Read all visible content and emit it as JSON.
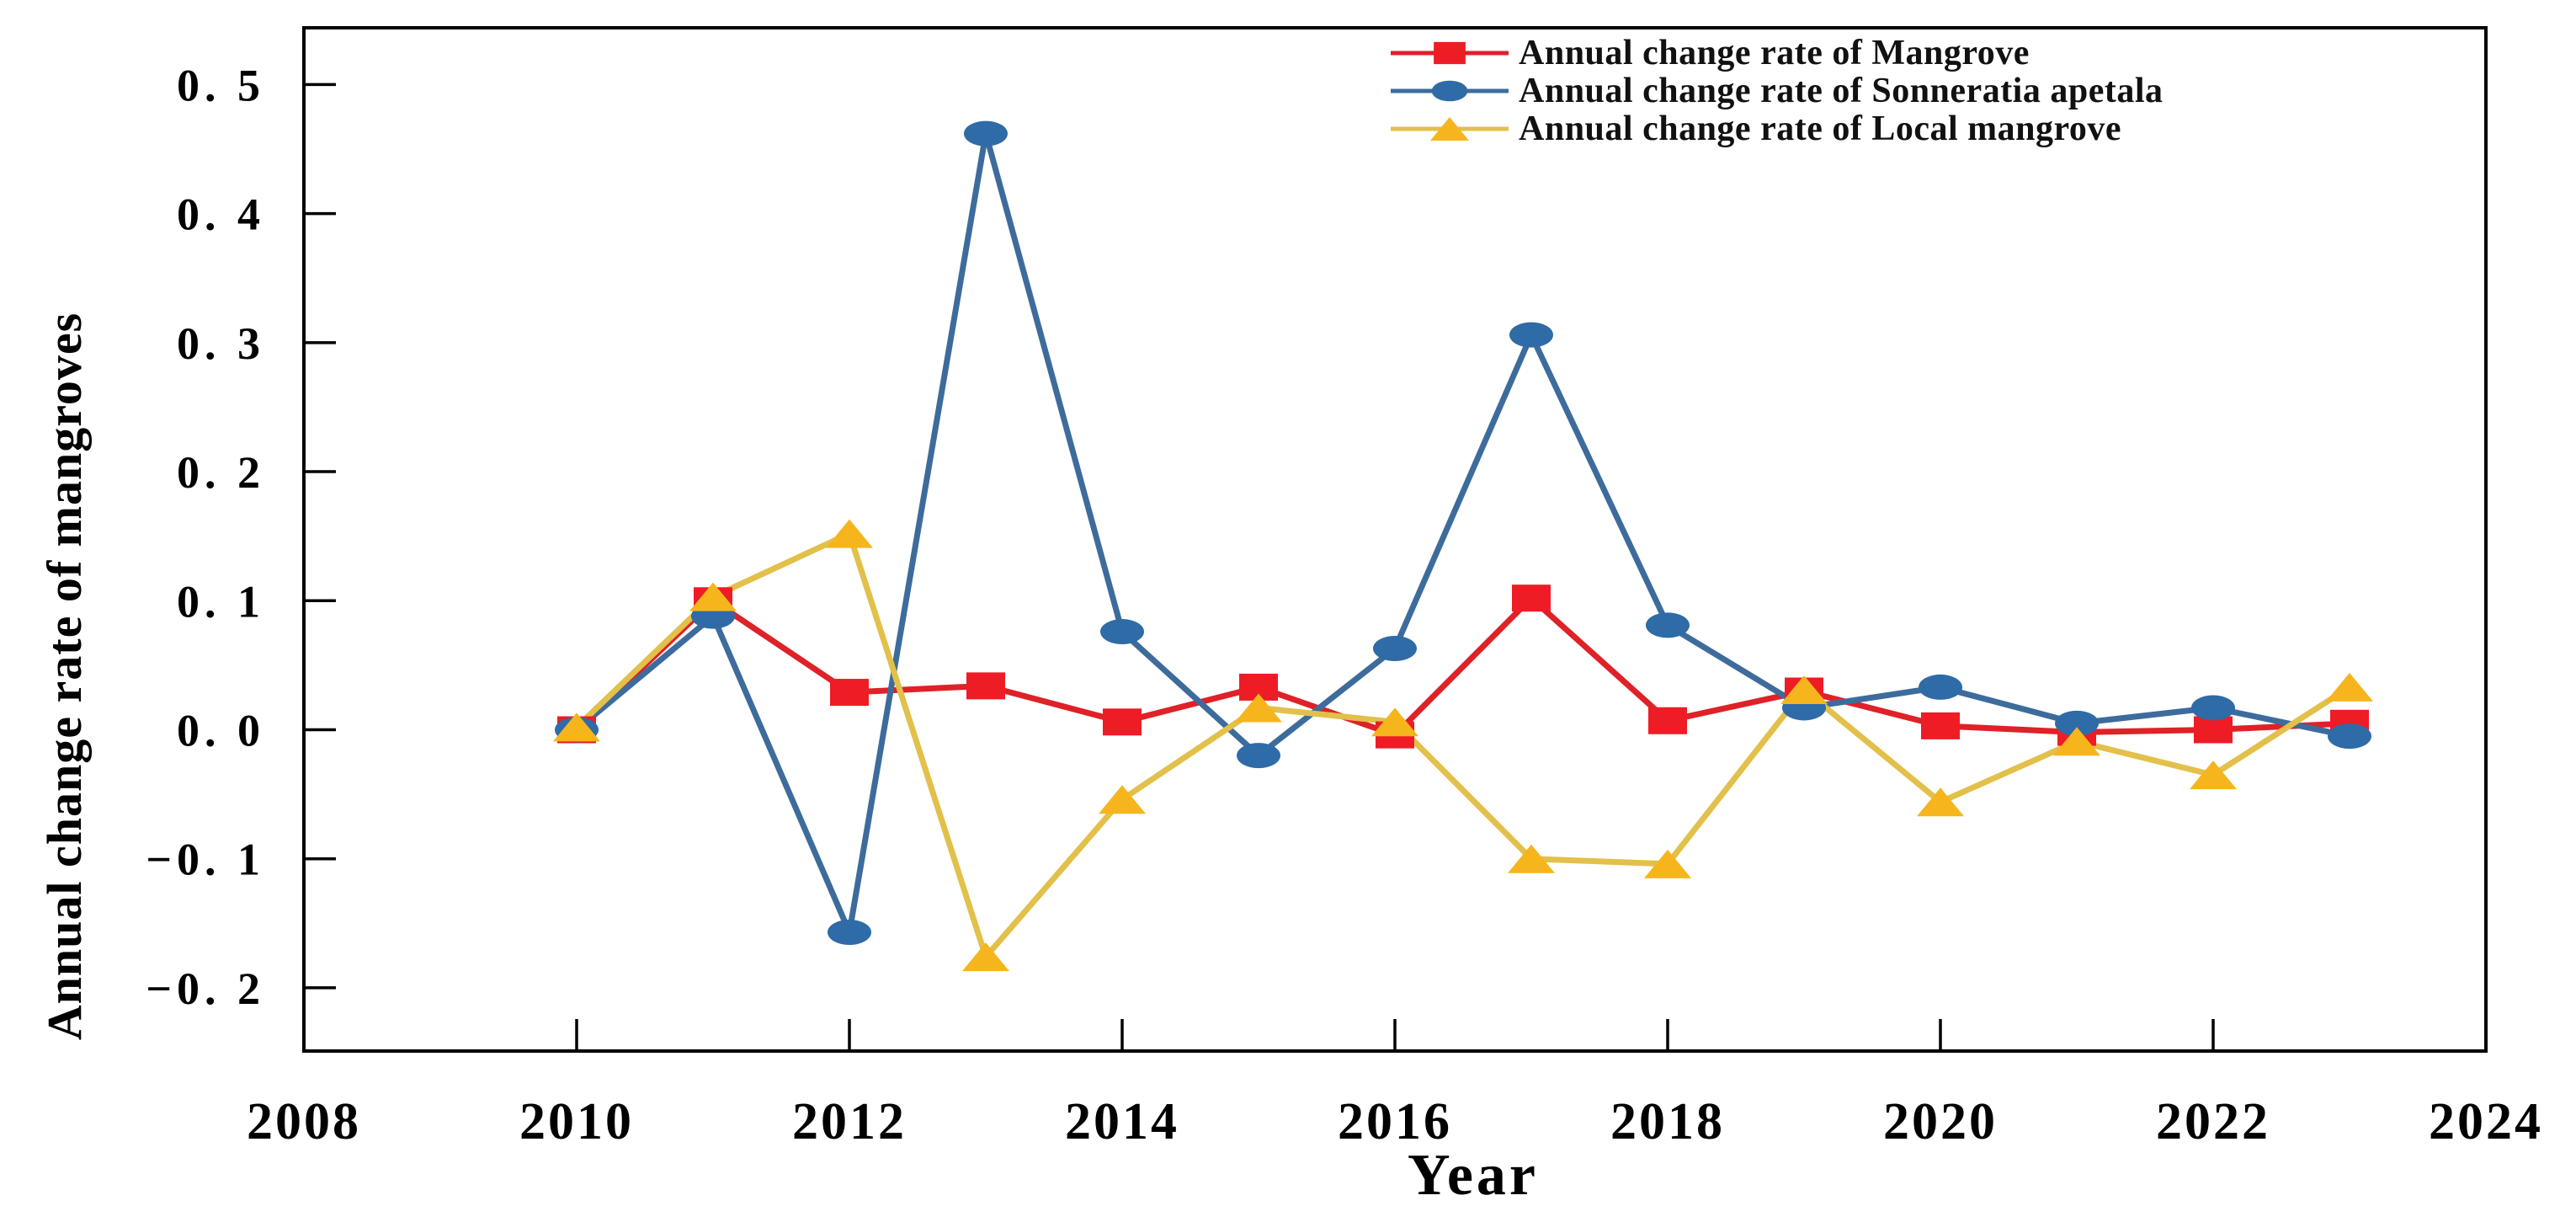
{
  "figure": {
    "background": "#ffffff",
    "axis_color": "#000000"
  },
  "chart_data": {
    "type": "line",
    "title": "",
    "xlabel": "Year",
    "ylabel": "Annual change rate of mangroves",
    "grid": false,
    "legend_position": "top-right-inside",
    "tick_direction": "in",
    "xlim": [
      2008,
      2024
    ],
    "ylim": [
      -0.249,
      0.544
    ],
    "xticks": [
      2008,
      2010,
      2012,
      2014,
      2016,
      2018,
      2020,
      2022,
      2024
    ],
    "yticks": [
      0.5,
      0.4,
      0.3,
      0.2,
      0.1,
      0.0,
      -0.1,
      -0.2
    ],
    "ytick_labels": [
      "0. 5",
      "0. 4",
      "0. 3",
      "0. 2",
      "0. 1",
      "0. 0",
      "−0. 1",
      "−0. 2"
    ],
    "x": [
      2010,
      2011,
      2012,
      2013,
      2014,
      2015,
      2016,
      2017,
      2018,
      2019,
      2020,
      2021,
      2022,
      2023
    ],
    "series": [
      {
        "key": "mangrove",
        "name": "Annual change rate of Mangrove",
        "marker": "square",
        "line_color": "#df2128",
        "marker_color": "#ee1c25",
        "values": [
          0.0,
          0.1,
          0.029,
          0.034,
          0.006,
          0.033,
          -0.004,
          0.102,
          0.007,
          0.03,
          0.003,
          -0.002,
          0.0,
          0.005
        ]
      },
      {
        "key": "sonneratia-apetala",
        "name": "Annual change rate of Sonneratia apetala",
        "marker": "circle",
        "line_color": "#3d6c9c",
        "marker_color": "#2f6ba6",
        "values": [
          0.0,
          0.088,
          -0.157,
          0.462,
          0.076,
          -0.02,
          0.063,
          0.306,
          0.081,
          0.017,
          0.033,
          0.005,
          0.017,
          -0.005
        ]
      },
      {
        "key": "local-mangrove",
        "name": "Annual change rate of Local mangrove",
        "marker": "triangle",
        "line_color": "#e2c04a",
        "marker_color": "#f6b51d",
        "values": [
          0.002,
          0.103,
          0.152,
          -0.176,
          -0.054,
          0.017,
          0.006,
          -0.1,
          -0.104,
          0.031,
          -0.056,
          -0.009,
          -0.035,
          0.033
        ]
      }
    ]
  }
}
